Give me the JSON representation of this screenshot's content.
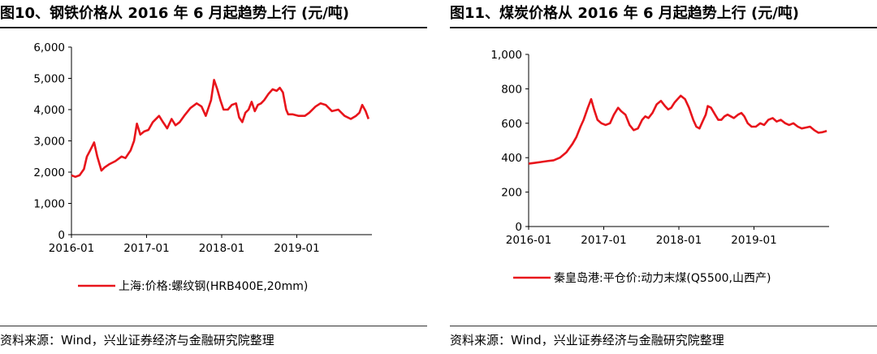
{
  "figures": [
    {
      "title": "图10、钢铁价格从 2016 年 6 月起趋势上行 (元/吨)",
      "source": "资料来源：Wind，兴业证券经济与金融研究院整理"
    },
    {
      "title": "图11、煤炭价格从 2016 年 6 月起趋势上行 (元/吨)",
      "source": "资料来源：Wind，兴业证券经济与金融研究院整理"
    }
  ],
  "chart_data": [
    {
      "type": "line",
      "ylim": [
        0,
        6000
      ],
      "yticks": [
        0,
        1000,
        2000,
        3000,
        4000,
        5000,
        6000
      ],
      "ytick_labels": [
        "0",
        "1,000",
        "2,000",
        "3,000",
        "4,000",
        "5,000",
        "6,000"
      ],
      "xlim": [
        "2016-01",
        "2019-12"
      ],
      "xticks": [
        "2016-01",
        "2017-01",
        "2018-01",
        "2019-01"
      ],
      "grid": false,
      "legend_position": "bottom",
      "color": "#e8141b",
      "series": [
        {
          "name": "上海:价格:螺纹钢(HRB400E,20mm)",
          "points": [
            [
              "2016-01-01",
              1900
            ],
            [
              "2016-01-20",
              1850
            ],
            [
              "2016-02-10",
              1900
            ],
            [
              "2016-03-01",
              2100
            ],
            [
              "2016-03-15",
              2500
            ],
            [
              "2016-04-01",
              2700
            ],
            [
              "2016-04-20",
              2950
            ],
            [
              "2016-05-05",
              2500
            ],
            [
              "2016-05-25",
              2050
            ],
            [
              "2016-06-10",
              2150
            ],
            [
              "2016-07-01",
              2250
            ],
            [
              "2016-08-01",
              2350
            ],
            [
              "2016-09-01",
              2500
            ],
            [
              "2016-09-20",
              2450
            ],
            [
              "2016-10-15",
              2700
            ],
            [
              "2016-11-01",
              3000
            ],
            [
              "2016-11-15",
              3550
            ],
            [
              "2016-12-01",
              3200
            ],
            [
              "2016-12-20",
              3300
            ],
            [
              "2017-01-10",
              3350
            ],
            [
              "2017-02-01",
              3600
            ],
            [
              "2017-03-01",
              3800
            ],
            [
              "2017-03-20",
              3600
            ],
            [
              "2017-04-10",
              3400
            ],
            [
              "2017-05-01",
              3700
            ],
            [
              "2017-05-20",
              3500
            ],
            [
              "2017-06-10",
              3600
            ],
            [
              "2017-07-01",
              3800
            ],
            [
              "2017-08-01",
              4050
            ],
            [
              "2017-09-01",
              4200
            ],
            [
              "2017-09-25",
              4100
            ],
            [
              "2017-10-15",
              3800
            ],
            [
              "2017-11-10",
              4300
            ],
            [
              "2017-11-25",
              4950
            ],
            [
              "2017-12-10",
              4650
            ],
            [
              "2017-12-25",
              4300
            ],
            [
              "2018-01-10",
              4000
            ],
            [
              "2018-01-31",
              4000
            ],
            [
              "2018-02-20",
              4150
            ],
            [
              "2018-03-10",
              4200
            ],
            [
              "2018-03-25",
              3750
            ],
            [
              "2018-04-10",
              3600
            ],
            [
              "2018-04-25",
              3900
            ],
            [
              "2018-05-10",
              4000
            ],
            [
              "2018-05-25",
              4250
            ],
            [
              "2018-06-10",
              3950
            ],
            [
              "2018-06-25",
              4150
            ],
            [
              "2018-07-10",
              4200
            ],
            [
              "2018-07-25",
              4300
            ],
            [
              "2018-08-15",
              4500
            ],
            [
              "2018-09-05",
              4650
            ],
            [
              "2018-09-25",
              4600
            ],
            [
              "2018-10-10",
              4700
            ],
            [
              "2018-10-25",
              4550
            ],
            [
              "2018-11-10",
              4000
            ],
            [
              "2018-11-20",
              3850
            ],
            [
              "2018-12-10",
              3850
            ],
            [
              "2019-01-10",
              3800
            ],
            [
              "2019-02-10",
              3800
            ],
            [
              "2019-03-01",
              3900
            ],
            [
              "2019-04-01",
              4100
            ],
            [
              "2019-04-25",
              4200
            ],
            [
              "2019-05-20",
              4150
            ],
            [
              "2019-06-20",
              3950
            ],
            [
              "2019-07-20",
              4000
            ],
            [
              "2019-08-20",
              3800
            ],
            [
              "2019-09-20",
              3700
            ],
            [
              "2019-10-15",
              3800
            ],
            [
              "2019-11-01",
              3900
            ],
            [
              "2019-11-15",
              4150
            ],
            [
              "2019-12-01",
              3950
            ],
            [
              "2019-12-15",
              3700
            ]
          ]
        }
      ]
    },
    {
      "type": "line",
      "ylim": [
        0,
        1000
      ],
      "yticks": [
        0,
        200,
        400,
        600,
        800,
        1000
      ],
      "ytick_labels": [
        "0",
        "200",
        "400",
        "600",
        "800",
        "1,000"
      ],
      "xlim": [
        "2016-01",
        "2019-12"
      ],
      "xticks": [
        "2016-01",
        "2017-01",
        "2018-01",
        "2019-01"
      ],
      "grid": false,
      "legend_position": "bottom",
      "color": "#e8141b",
      "series": [
        {
          "name": "秦皇岛港:平仓价:动力末煤(Q5500,山西产)",
          "points": [
            [
              "2016-01-01",
              365
            ],
            [
              "2016-02-01",
              370
            ],
            [
              "2016-03-01",
              375
            ],
            [
              "2016-04-01",
              380
            ],
            [
              "2016-05-01",
              385
            ],
            [
              "2016-06-01",
              400
            ],
            [
              "2016-07-01",
              430
            ],
            [
              "2016-08-01",
              480
            ],
            [
              "2016-08-20",
              520
            ],
            [
              "2016-09-10",
              580
            ],
            [
              "2016-09-25",
              620
            ],
            [
              "2016-10-15",
              690
            ],
            [
              "2016-10-31",
              740
            ],
            [
              "2016-11-15",
              680
            ],
            [
              "2016-12-01",
              620
            ],
            [
              "2016-12-20",
              600
            ],
            [
              "2017-01-10",
              590
            ],
            [
              "2017-02-01",
              600
            ],
            [
              "2017-02-20",
              650
            ],
            [
              "2017-03-10",
              690
            ],
            [
              "2017-03-25",
              670
            ],
            [
              "2017-04-15",
              650
            ],
            [
              "2017-05-05",
              590
            ],
            [
              "2017-05-25",
              560
            ],
            [
              "2017-06-15",
              570
            ],
            [
              "2017-07-05",
              620
            ],
            [
              "2017-07-20",
              640
            ],
            [
              "2017-08-05",
              630
            ],
            [
              "2017-08-25",
              660
            ],
            [
              "2017-09-15",
              710
            ],
            [
              "2017-10-05",
              730
            ],
            [
              "2017-10-25",
              700
            ],
            [
              "2017-11-10",
              680
            ],
            [
              "2017-11-25",
              690
            ],
            [
              "2017-12-10",
              720
            ],
            [
              "2017-12-25",
              740
            ],
            [
              "2018-01-10",
              760
            ],
            [
              "2018-01-31",
              740
            ],
            [
              "2018-02-20",
              690
            ],
            [
              "2018-03-10",
              620
            ],
            [
              "2018-03-25",
              580
            ],
            [
              "2018-04-10",
              570
            ],
            [
              "2018-04-25",
              610
            ],
            [
              "2018-05-10",
              650
            ],
            [
              "2018-05-20",
              700
            ],
            [
              "2018-06-05",
              690
            ],
            [
              "2018-06-25",
              650
            ],
            [
              "2018-07-10",
              620
            ],
            [
              "2018-07-25",
              620
            ],
            [
              "2018-08-10",
              640
            ],
            [
              "2018-08-25",
              650
            ],
            [
              "2018-09-10",
              640
            ],
            [
              "2018-09-25",
              630
            ],
            [
              "2018-10-15",
              650
            ],
            [
              "2018-10-31",
              660
            ],
            [
              "2018-11-15",
              640
            ],
            [
              "2018-12-01",
              600
            ],
            [
              "2018-12-20",
              580
            ],
            [
              "2019-01-10",
              580
            ],
            [
              "2019-02-01",
              600
            ],
            [
              "2019-02-20",
              590
            ],
            [
              "2019-03-10",
              620
            ],
            [
              "2019-03-31",
              630
            ],
            [
              "2019-04-20",
              610
            ],
            [
              "2019-05-10",
              620
            ],
            [
              "2019-06-01",
              600
            ],
            [
              "2019-06-20",
              590
            ],
            [
              "2019-07-10",
              600
            ],
            [
              "2019-08-01",
              580
            ],
            [
              "2019-08-20",
              570
            ],
            [
              "2019-09-10",
              575
            ],
            [
              "2019-09-30",
              580
            ],
            [
              "2019-10-20",
              560
            ],
            [
              "2019-11-10",
              545
            ],
            [
              "2019-11-30",
              548
            ],
            [
              "2019-12-20",
              555
            ]
          ]
        }
      ]
    }
  ]
}
